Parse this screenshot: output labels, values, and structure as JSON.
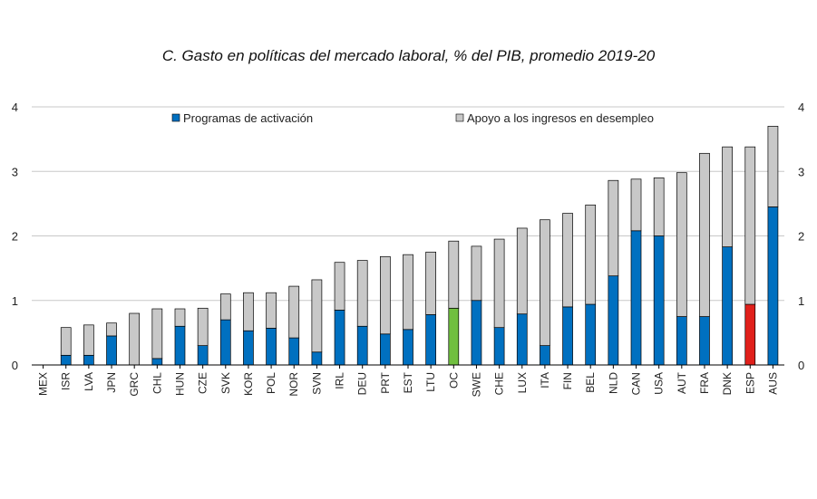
{
  "chart_data": {
    "type": "bar",
    "stacked": true,
    "title": "C. Gasto en políticas del mercado laboral, % del PIB, promedio 2019-20",
    "xlabel": "",
    "ylabel": "",
    "ylim": [
      0,
      4
    ],
    "yticks": [
      0,
      1,
      2,
      3,
      4
    ],
    "dual_y_axis": true,
    "grid": true,
    "legend_position": "top",
    "categories": [
      "MEX",
      "ISR",
      "LVA",
      "JPN",
      "GRC",
      "CHL",
      "HUN",
      "CZE",
      "SVK",
      "KOR",
      "POL",
      "NOR",
      "SVN",
      "IRL",
      "DEU",
      "PRT",
      "EST",
      "LTU",
      "OC",
      "SWE",
      "CHE",
      "LUX",
      "ITA",
      "FIN",
      "BEL",
      "NLD",
      "CAN",
      "USA",
      "AUT",
      "FRA",
      "DNK",
      "ESP",
      "AUS"
    ],
    "series": [
      {
        "name": "Programas de activación",
        "color": "#0070c0",
        "values": [
          0.0,
          0.15,
          0.15,
          0.45,
          0.0,
          0.1,
          0.6,
          0.3,
          0.7,
          0.53,
          0.57,
          0.42,
          0.2,
          0.85,
          0.6,
          0.48,
          0.55,
          0.78,
          0.88,
          1.0,
          0.58,
          0.79,
          0.3,
          0.9,
          0.94,
          1.38,
          2.08,
          2.0,
          0.75,
          0.75,
          1.83,
          0.94,
          2.45
        ]
      },
      {
        "name": "Apoyo a los ingresos en desempleo",
        "color": "#c8c8c8",
        "values": [
          0.0,
          0.43,
          0.47,
          0.2,
          0.8,
          0.77,
          0.27,
          0.58,
          0.4,
          0.59,
          0.55,
          0.8,
          1.12,
          0.74,
          1.02,
          1.2,
          1.16,
          0.97,
          1.04,
          0.84,
          1.37,
          1.33,
          1.95,
          1.45,
          1.54,
          1.48,
          0.8,
          0.9,
          2.23,
          2.53,
          1.55,
          2.44,
          1.25
        ]
      }
    ],
    "highlights": {
      "OC": "#70bf3f",
      "ESP": "#e0201b"
    }
  }
}
